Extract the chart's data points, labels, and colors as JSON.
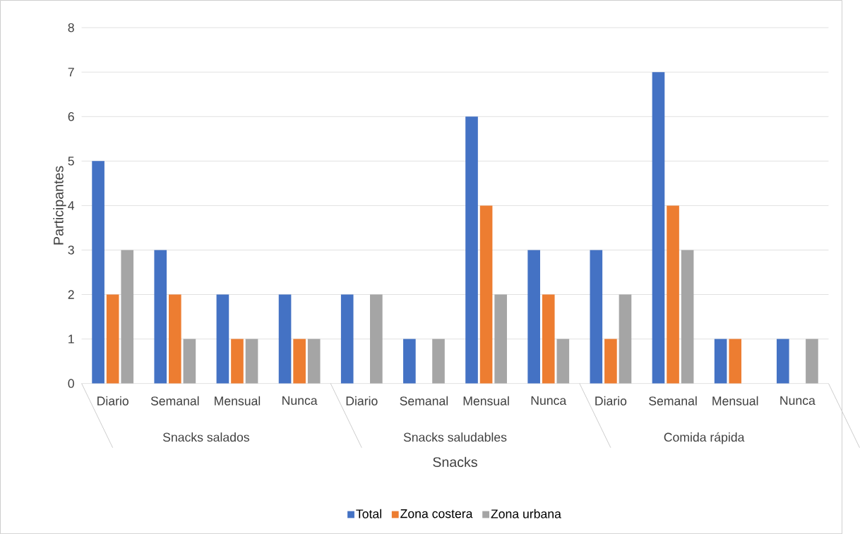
{
  "chart_data": {
    "type": "bar",
    "xlabel": "Snacks",
    "ylabel": "Participantes",
    "categories": [
      "Diario",
      "Semanal",
      "Mensual",
      "Nunca",
      "Diario",
      "Semanal",
      "Mensual",
      "Nunca",
      "Diario",
      "Semanal",
      "Mensual",
      "Nunca"
    ],
    "annotations": [
      "Snacks salados",
      "Snacks saludables",
      "Comida rápida"
    ],
    "series": [
      {
        "name": "Total",
        "color": "#4472c4",
        "values": [
          5,
          3,
          2,
          2,
          2,
          1,
          6,
          3,
          3,
          7,
          1,
          1
        ]
      },
      {
        "name": "Zona costera",
        "color": "#ed7d31",
        "values": [
          2,
          2,
          1,
          1,
          0,
          0,
          4,
          2,
          1,
          4,
          1,
          0
        ]
      },
      {
        "name": "Zona urbana",
        "color": "#a5a5a5",
        "values": [
          3,
          1,
          1,
          1,
          2,
          1,
          2,
          1,
          2,
          3,
          0,
          1
        ]
      }
    ],
    "ylim": [
      0,
      8
    ],
    "yticks": [
      0,
      1,
      2,
      3,
      4,
      5,
      6,
      7,
      8
    ],
    "grid": "y",
    "legend": "bottom"
  }
}
